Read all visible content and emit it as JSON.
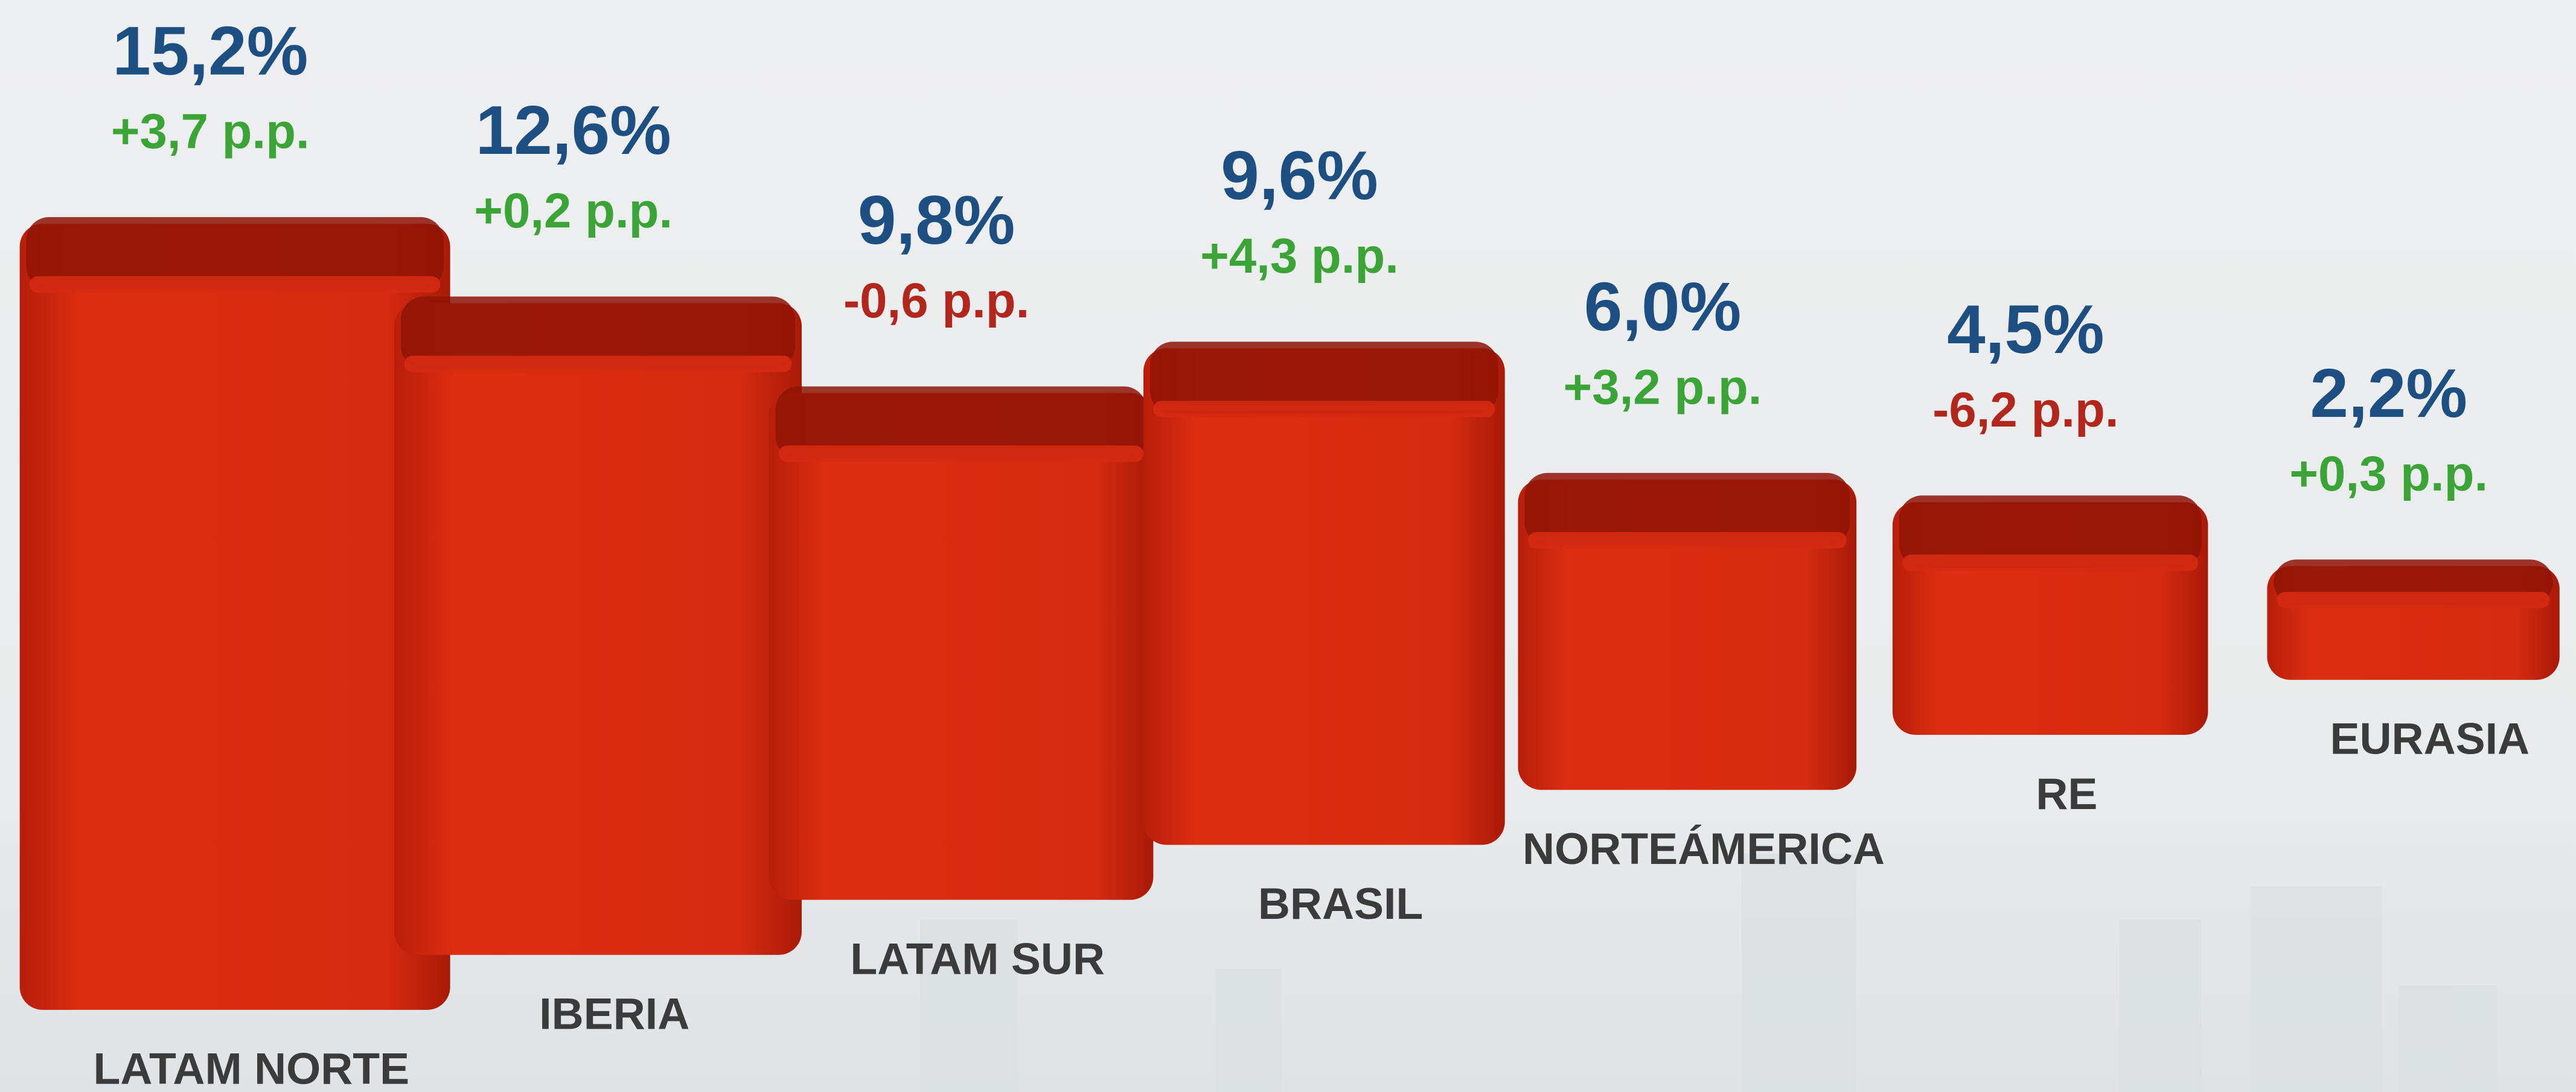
{
  "chart_data": {
    "type": "bar",
    "categories": [
      "LATAM NORTE",
      "IBERIA",
      "LATAM SUR",
      "BRASIL",
      "NORTEÁMERICA",
      "RE",
      "EURASIA"
    ],
    "values": [
      15.2,
      12.6,
      9.8,
      9.6,
      6.0,
      4.5,
      2.2
    ],
    "value_labels": [
      "15,2%",
      "12,6%",
      "9,8%",
      "9,6%",
      "6,0%",
      "4,5%",
      "2,2%"
    ],
    "changes": [
      3.7,
      0.2,
      -0.6,
      4.3,
      3.2,
      -6.2,
      0.3
    ],
    "change_labels": [
      "+3,7 p.p.",
      "+0,2 p.p.",
      "-0,6 p.p.",
      "+4,3 p.p.",
      "+3,2 p.p.",
      "-6,2 p.p.",
      "+0,3 p.p."
    ],
    "color": "#d52a12",
    "positive_color": "#3aa536",
    "negative_color": "#b3261c"
  }
}
